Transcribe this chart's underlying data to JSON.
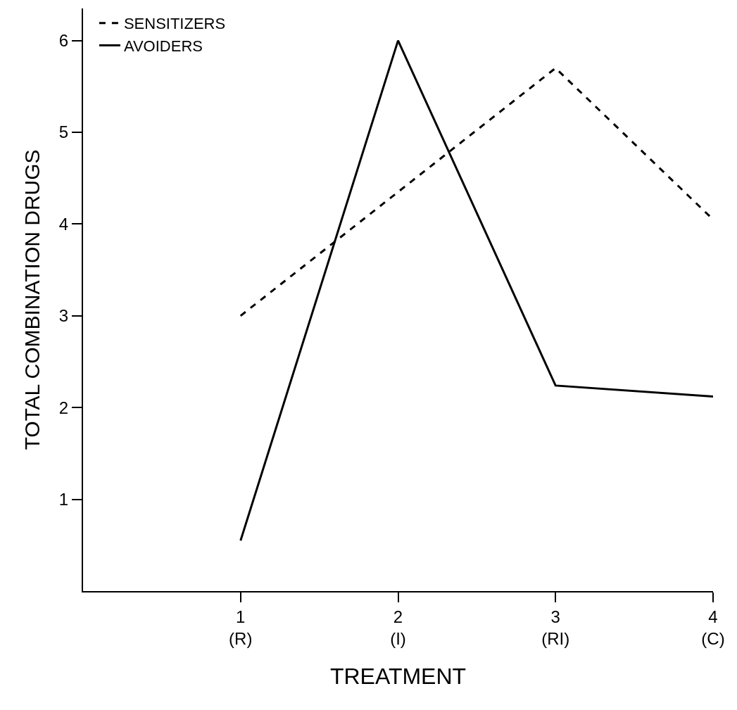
{
  "chart_data": {
    "type": "line",
    "xlabel": "TREATMENT",
    "ylabel": "TOTAL COMBINATION DRUGS",
    "x": [
      1,
      2,
      3,
      4
    ],
    "xlim": [
      0,
      4
    ],
    "xticks": [
      {
        "value": 1,
        "label": "1\n(R)"
      },
      {
        "value": 2,
        "label": "2\n(I)"
      },
      {
        "value": 3,
        "label": "3\n(RI)"
      },
      {
        "value": 4,
        "label": "4\n(C)"
      }
    ],
    "ylim": [
      0,
      6.35
    ],
    "yticks": [
      1,
      2,
      3,
      4,
      5,
      6
    ],
    "grid": false,
    "legend": "top left",
    "marker": "none",
    "series": [
      {
        "name": "SENSITIZERS",
        "color": "#000000",
        "line_style": "dashed",
        "values": [
          3.0,
          4.35,
          5.7,
          4.05
        ]
      },
      {
        "name": "AVOIDERS",
        "color": "#000000",
        "line_style": "solid",
        "values": [
          0.55,
          6.0,
          2.24,
          2.12
        ]
      }
    ]
  }
}
